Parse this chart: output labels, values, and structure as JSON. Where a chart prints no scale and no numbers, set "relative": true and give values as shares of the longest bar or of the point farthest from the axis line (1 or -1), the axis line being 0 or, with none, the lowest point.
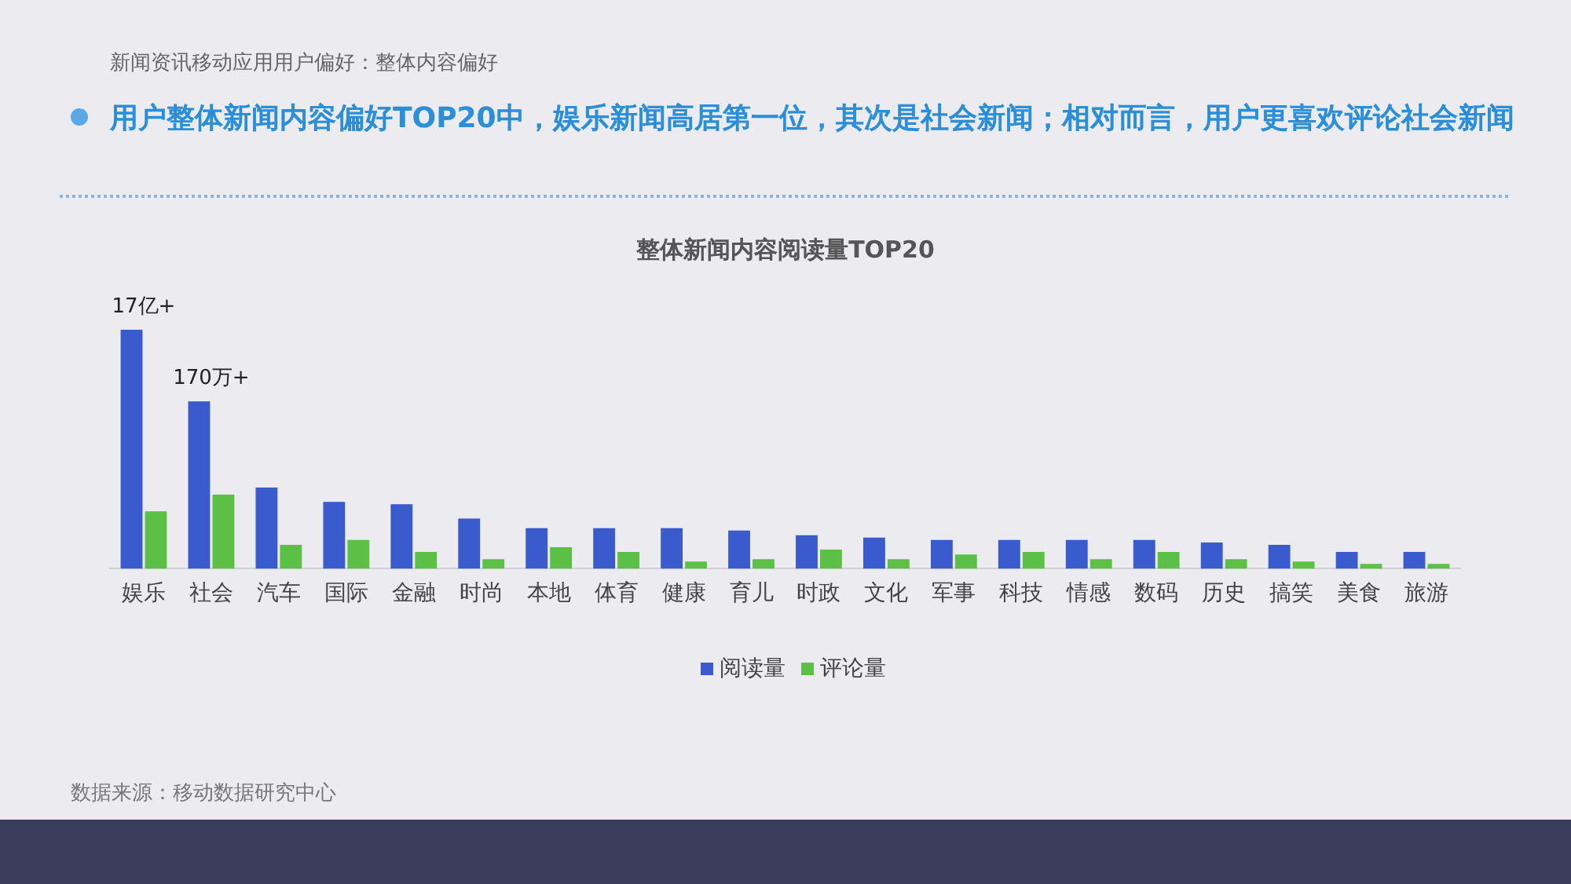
{
  "chart_data": {
    "type": "bar",
    "title": "整体新闻内容阅读量TOP20",
    "subtitle": "用户整体新闻内容偏好TOP20中，娱乐新闻高居第一位，其次是社会新闻；相对而言，用户更喜欢评论社会新闻",
    "annotations": [
      "新闻资讯移动应用用户偏好：整体内容偏好",
      "数据来源：移动数据研究中心",
      {
        "text": "17亿+",
        "x": "娱乐",
        "y": 1
      },
      {
        "text": "170万+",
        "x": "社会",
        "y": 0.7
      }
    ],
    "categories": [
      "娱乐",
      "社会",
      "汽车",
      "国际",
      "金融",
      "时尚",
      "本地",
      "体育",
      "健康",
      "育儿",
      "时政",
      "文化",
      "军事",
      "科技",
      "情感",
      "数码",
      "历史",
      "搞笑",
      "美食",
      "旅游"
    ],
    "relative": true,
    "legend": "bottom",
    "grid": false,
    "series": [
      {
        "name": "阅读量",
        "color": "#3a5bcd",
        "values": [
          1,
          0.7,
          0.34,
          0.28,
          0.27,
          0.21,
          0.17,
          0.17,
          0.17,
          0.16,
          0.14,
          0.13,
          0.12,
          0.12,
          0.12,
          0.12,
          0.11,
          0.1,
          0.07,
          0.07
        ]
      },
      {
        "name": "评论量",
        "color": "#5cbf46",
        "values": [
          0.24,
          0.31,
          0.1,
          0.12,
          0.07,
          0.04,
          0.09,
          0.07,
          0.03,
          0.04,
          0.08,
          0.04,
          0.06,
          0.07,
          0.04,
          0.07,
          0.04,
          0.03,
          0.02,
          0.02
        ]
      }
    ]
  }
}
